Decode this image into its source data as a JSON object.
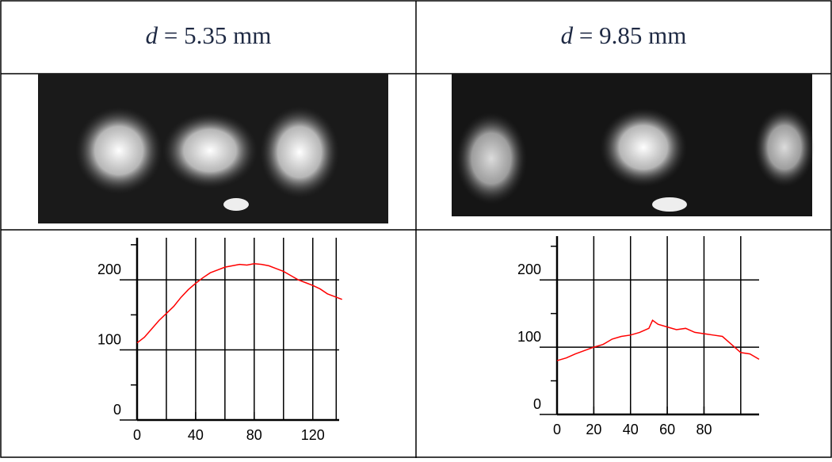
{
  "table": {
    "headers": [
      [
        "d",
        "= 5.35 mm"
      ],
      [
        "d",
        "= 9.85 mm"
      ]
    ]
  },
  "chart_data": [
    {
      "type": "line",
      "color": "#ff0000",
      "x": [
        0,
        5,
        10,
        15,
        20,
        25,
        30,
        35,
        40,
        45,
        50,
        55,
        60,
        65,
        70,
        75,
        80,
        85,
        90,
        95,
        100,
        105,
        110,
        115,
        120,
        125,
        130,
        135,
        140
      ],
      "values": [
        110,
        118,
        130,
        142,
        152,
        162,
        175,
        186,
        195,
        203,
        210,
        214,
        218,
        220,
        222,
        221,
        223,
        222,
        220,
        216,
        212,
        206,
        200,
        196,
        192,
        187,
        180,
        176,
        172
      ],
      "xlim": [
        0,
        138
      ],
      "ylim": [
        0,
        260
      ],
      "xticks": [
        0,
        40,
        80,
        120
      ],
      "yticks": [
        0,
        100,
        200
      ],
      "xgrid": [
        20,
        40,
        60,
        80,
        100,
        120,
        136
      ],
      "yminor": [
        50,
        150,
        250
      ]
    },
    {
      "type": "line",
      "color": "#ff0000",
      "x": [
        0,
        5,
        10,
        15,
        20,
        25,
        30,
        35,
        40,
        45,
        50,
        52,
        55,
        60,
        65,
        70,
        75,
        80,
        85,
        90,
        95,
        100,
        105,
        110
      ],
      "values": [
        80,
        84,
        90,
        95,
        100,
        104,
        112,
        116,
        118,
        122,
        128,
        140,
        134,
        130,
        126,
        128,
        122,
        120,
        118,
        116,
        104,
        92,
        90,
        82
      ],
      "xlim": [
        0,
        110
      ],
      "ylim": [
        0,
        265
      ],
      "xticks": [
        0,
        20,
        40,
        60,
        80
      ],
      "yticks": [
        0,
        100,
        200
      ],
      "xgrid": [
        20,
        40,
        60,
        80,
        100
      ],
      "yminor": [
        50,
        150,
        250
      ]
    }
  ]
}
